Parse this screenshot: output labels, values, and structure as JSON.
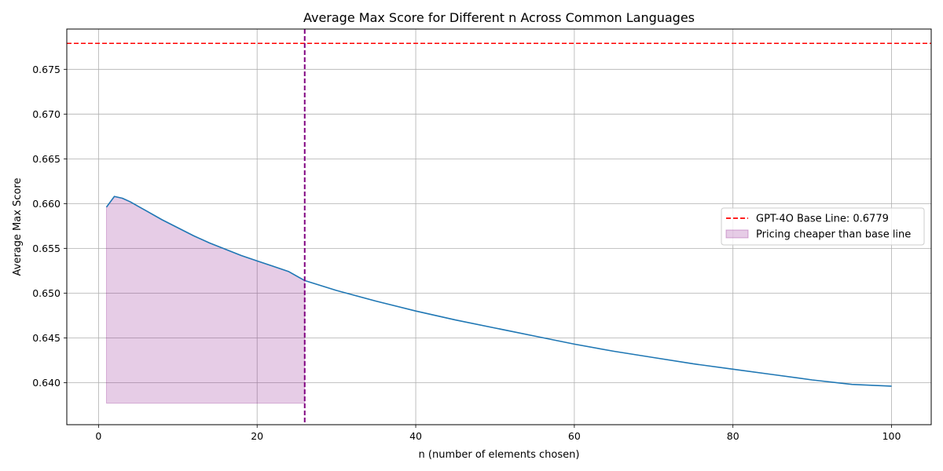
{
  "chart_data": {
    "type": "line",
    "title": "Average Max Score for Different n Across Common Languages",
    "xlabel": "n (number of elements chosen)",
    "ylabel": "Average Max Score",
    "xlim": [
      -4,
      105
    ],
    "ylim": [
      0.6353,
      0.6795
    ],
    "xticks": [
      0,
      20,
      40,
      60,
      80,
      100
    ],
    "xtick_labels": [
      "0",
      "20",
      "40",
      "60",
      "80",
      "100"
    ],
    "yticks": [
      0.64,
      0.645,
      0.65,
      0.655,
      0.66,
      0.665,
      0.67,
      0.675
    ],
    "ytick_labels": [
      "0.640",
      "0.645",
      "0.650",
      "0.655",
      "0.660",
      "0.665",
      "0.670",
      "0.675"
    ],
    "grid": true,
    "series": [
      {
        "type": "line",
        "color": "#1f77b4",
        "x": [
          1,
          2,
          3,
          4,
          5,
          6,
          8,
          10,
          12,
          14,
          16,
          18,
          20,
          22,
          24,
          26,
          30,
          35,
          40,
          45,
          50,
          55,
          60,
          65,
          70,
          75,
          80,
          85,
          90,
          95,
          100
        ],
        "y": [
          0.6596,
          0.6608,
          0.6606,
          0.6602,
          0.6597,
          0.6592,
          0.6582,
          0.6573,
          0.6564,
          0.6556,
          0.6549,
          0.6542,
          0.6536,
          0.653,
          0.6524,
          0.6514,
          0.6503,
          0.6491,
          0.648,
          0.647,
          0.6461,
          0.6452,
          0.6443,
          0.6435,
          0.6428,
          0.6421,
          0.6415,
          0.6409,
          0.6403,
          0.6398,
          0.6396
        ]
      }
    ],
    "hline": {
      "label": "GPT-4O Base Line: 0.6779",
      "y": 0.6779,
      "color": "#ff0000",
      "style": "dashed"
    },
    "vline": {
      "x": 26,
      "color": "#800080",
      "style": "dashed"
    },
    "fill": {
      "label": "Pricing cheaper than base line",
      "x_from": 1,
      "x_to": 26,
      "y_bottom": 0.6377,
      "color": "#800080",
      "opacity": 0.2
    },
    "legend_position": "center-right"
  }
}
